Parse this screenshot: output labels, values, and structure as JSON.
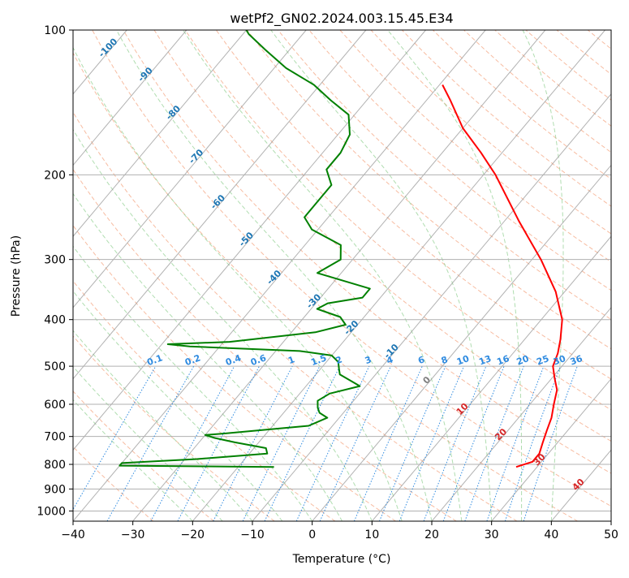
{
  "chart_data": {
    "type": "line",
    "title": "wetPf2_GN02.2024.003.15.45.E34",
    "xlabel": "Temperature (°C)",
    "ylabel": "Pressure (hPa)",
    "xlim": [
      -40,
      50
    ],
    "ylim": [
      1050,
      100
    ],
    "y_scale": "log",
    "x_ticks": [
      -40,
      -30,
      -20,
      -10,
      0,
      10,
      20,
      30,
      40,
      50
    ],
    "y_ticks": [
      100,
      200,
      300,
      400,
      500,
      600,
      700,
      800,
      900,
      1000
    ],
    "grid": true,
    "skew_x": true,
    "background_lines": {
      "dry_adiabats_color": "#f4a582",
      "moist_adiabats_color": "#8fcf8f",
      "mixing_ratio_color": "#2f8be0",
      "isotherm_color": "#999999"
    },
    "isotherm_labels": [
      {
        "text": "-100",
        "temp": -100
      },
      {
        "text": "-90",
        "temp": -90
      },
      {
        "text": "-80",
        "temp": -80
      },
      {
        "text": "-70",
        "temp": -70
      },
      {
        "text": "-60",
        "temp": -60
      },
      {
        "text": "-50",
        "temp": -50
      },
      {
        "text": "-40",
        "temp": -40
      },
      {
        "text": "-30",
        "temp": -30
      },
      {
        "text": "-20",
        "temp": -20
      },
      {
        "text": "-10",
        "temp": -10
      },
      {
        "text": "0",
        "temp": 0
      },
      {
        "text": "10",
        "temp": 10
      },
      {
        "text": "20",
        "temp": 20
      },
      {
        "text": "30",
        "temp": 30
      },
      {
        "text": "40",
        "temp": 40
      }
    ],
    "mixing_ratio_labels": [
      "0.1",
      "0.2",
      "0.4",
      "0.6",
      "1",
      "1.5",
      "2",
      "3",
      "4",
      "6",
      "8",
      "10",
      "13",
      "16",
      "20",
      "25",
      "30",
      "36"
    ],
    "series": [
      {
        "color": "#ff0000",
        "points": [
          [
            810,
            26.5
          ],
          [
            790,
            28.5
          ],
          [
            760,
            28.5
          ],
          [
            720,
            27.5
          ],
          [
            680,
            26.5
          ],
          [
            640,
            25.5
          ],
          [
            600,
            24.0
          ],
          [
            560,
            22.5
          ],
          [
            530,
            20.5
          ],
          [
            500,
            18.5
          ],
          [
            470,
            17.5
          ],
          [
            440,
            16.0
          ],
          [
            400,
            13.5
          ],
          [
            350,
            8.5
          ],
          [
            300,
            1.5
          ],
          [
            250,
            -7.5
          ],
          [
            200,
            -18.0
          ],
          [
            180,
            -23.5
          ],
          [
            160,
            -30.0
          ],
          [
            140,
            -36.0
          ],
          [
            130,
            -39.5
          ]
        ]
      },
      {
        "color": "#008000",
        "points": [
          [
            810,
            -14
          ],
          [
            805,
            -40
          ],
          [
            795,
            -40
          ],
          [
            780,
            -28
          ],
          [
            760,
            -17
          ],
          [
            740,
            -18
          ],
          [
            720,
            -24
          ],
          [
            705,
            -28
          ],
          [
            695,
            -30
          ],
          [
            690,
            -27
          ],
          [
            665,
            -14
          ],
          [
            640,
            -12
          ],
          [
            625,
            -14
          ],
          [
            610,
            -15
          ],
          [
            590,
            -16
          ],
          [
            570,
            -15
          ],
          [
            550,
            -11
          ],
          [
            520,
            -16
          ],
          [
            505,
            -17
          ],
          [
            490,
            -18
          ],
          [
            475,
            -20
          ],
          [
            465,
            -26
          ],
          [
            455,
            -45
          ],
          [
            450,
            -49
          ],
          [
            445,
            -39
          ],
          [
            425,
            -26
          ],
          [
            410,
            -22
          ],
          [
            395,
            -24
          ],
          [
            380,
            -29
          ],
          [
            370,
            -28
          ],
          [
            360,
            -23
          ],
          [
            345,
            -23
          ],
          [
            320,
            -34
          ],
          [
            300,
            -32
          ],
          [
            280,
            -34
          ],
          [
            260,
            -41
          ],
          [
            245,
            -44
          ],
          [
            225,
            -44
          ],
          [
            210,
            -44
          ],
          [
            195,
            -47
          ],
          [
            180,
            -47
          ],
          [
            165,
            -48
          ],
          [
            150,
            -51
          ],
          [
            140,
            -56
          ],
          [
            130,
            -61
          ],
          [
            120,
            -68
          ],
          [
            110,
            -74
          ],
          [
            102,
            -79
          ],
          [
            100,
            -80
          ]
        ]
      }
    ]
  }
}
